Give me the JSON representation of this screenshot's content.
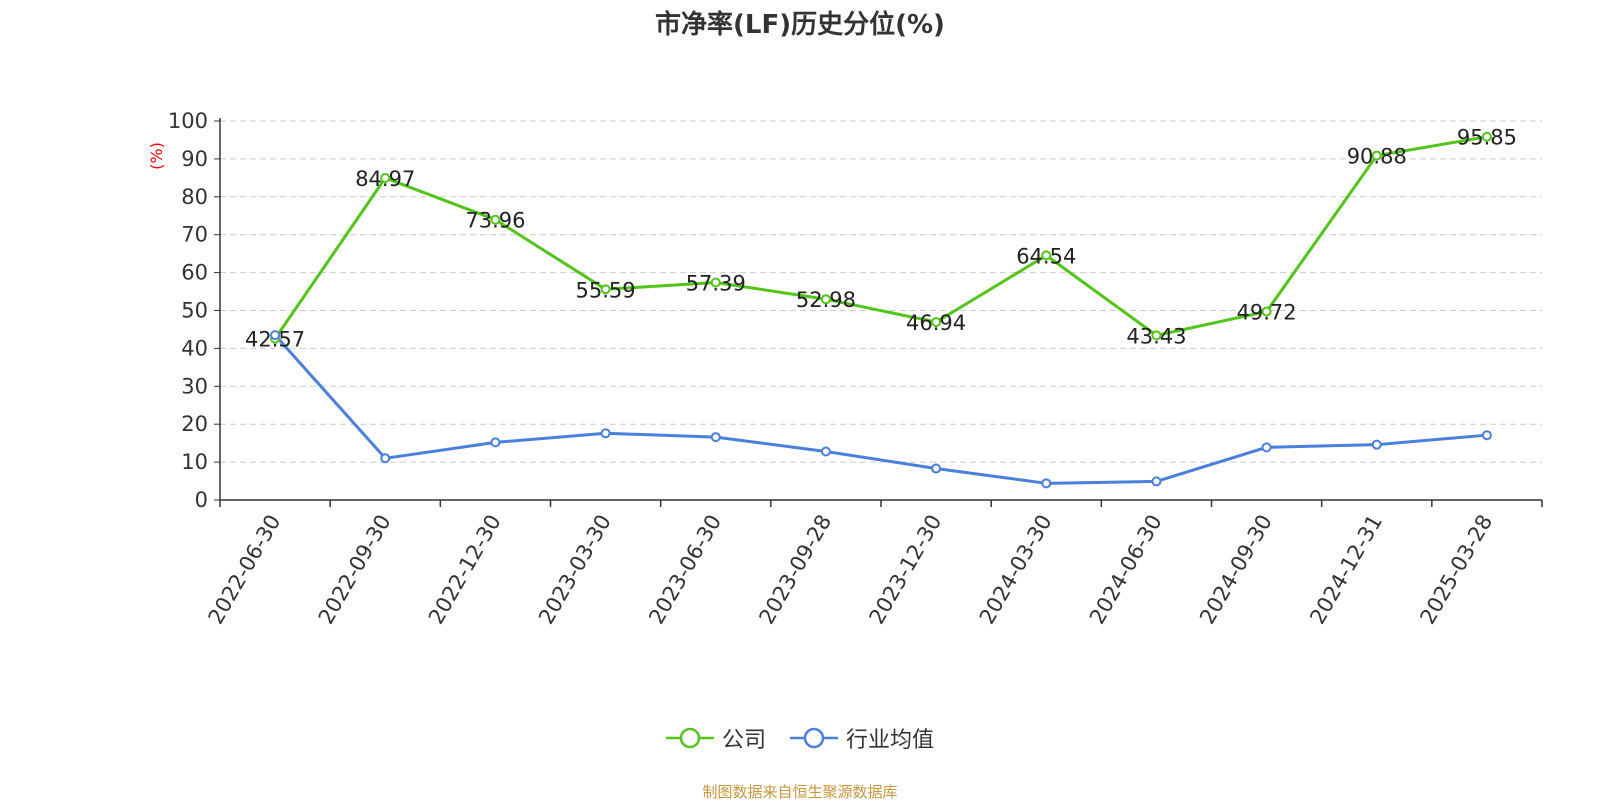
{
  "chart_data": {
    "type": "line",
    "title": "市净率(LF)历史分位(%)",
    "ylabel": "(%)",
    "xlabel": "",
    "ylim": [
      0,
      100
    ],
    "yticks": [
      0,
      10,
      20,
      30,
      40,
      50,
      60,
      70,
      80,
      90,
      100
    ],
    "grid": true,
    "legend_position": "bottom-center",
    "categories": [
      "2022-06-30",
      "2022-09-30",
      "2022-12-30",
      "2023-03-30",
      "2023-06-30",
      "2023-09-28",
      "2023-12-30",
      "2024-03-30",
      "2024-06-30",
      "2024-09-30",
      "2024-12-31",
      "2025-03-28"
    ],
    "series": [
      {
        "name": "公司",
        "color": "#52c41a",
        "values": [
          42.57,
          84.97,
          73.96,
          55.59,
          57.39,
          52.98,
          46.94,
          64.54,
          43.43,
          49.72,
          90.88,
          95.85
        ],
        "show_labels": true
      },
      {
        "name": "行业均值",
        "color": "#4a7fdc",
        "values": [
          43.5,
          11.0,
          15.2,
          17.6,
          16.6,
          12.8,
          8.3,
          4.4,
          4.9,
          13.9,
          14.6,
          17.1
        ],
        "show_labels": false
      }
    ]
  },
  "footer": {
    "source": "制图数据来自恒生聚源数据库"
  },
  "colors": {
    "axis": "#333333",
    "grid": "#cccccc",
    "ylabel": "#ff0000",
    "source": "#c8963c"
  }
}
